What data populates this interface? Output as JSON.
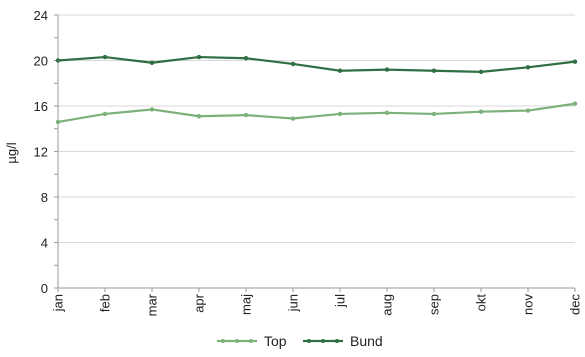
{
  "chart_data": {
    "type": "line",
    "ylabel": "µg/l",
    "xlabel": "",
    "ylim": [
      0,
      24
    ],
    "yticks": [
      0,
      4,
      8,
      12,
      16,
      20,
      24
    ],
    "grid": true,
    "legend_placement": "bottom-center",
    "categories": [
      "jan",
      "feb",
      "mar",
      "apr",
      "maj",
      "jun",
      "jul",
      "aug",
      "sep",
      "okt",
      "nov",
      "dec"
    ],
    "series": [
      {
        "name": "Top",
        "color": "#7cb27a",
        "values": [
          14.6,
          15.3,
          15.7,
          15.1,
          15.2,
          14.9,
          15.3,
          15.4,
          15.3,
          15.5,
          15.6,
          16.2
        ]
      },
      {
        "name": "Bund",
        "color": "#2f6f43",
        "values": [
          20.0,
          20.3,
          19.8,
          20.3,
          20.2,
          19.7,
          19.1,
          19.2,
          19.1,
          19.0,
          19.4,
          19.9
        ]
      }
    ]
  }
}
